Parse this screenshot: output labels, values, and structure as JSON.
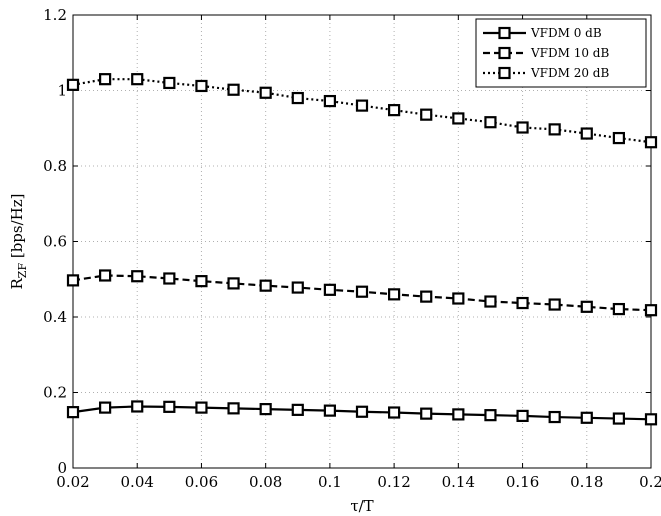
{
  "chart_data": {
    "type": "line",
    "xlabel": "τ/T",
    "ylabel_main": "R",
    "ylabel_sub": "ZF",
    "ylabel_rest": " [bps/Hz]",
    "xlim": [
      0.02,
      0.2
    ],
    "ylim": [
      0,
      1.2
    ],
    "xticks": [
      "0.02",
      "0.04",
      "0.06",
      "0.08",
      "0.1",
      "0.12",
      "0.14",
      "0.16",
      "0.18",
      "0.2"
    ],
    "yticks": [
      "0",
      "0.2",
      "0.4",
      "0.6",
      "0.8",
      "1",
      "1.2"
    ],
    "grid": true,
    "legend_position": "top-right",
    "x": [
      0.02,
      0.03,
      0.04,
      0.05,
      0.06,
      0.07,
      0.08,
      0.09,
      0.1,
      0.11,
      0.12,
      0.13,
      0.14,
      0.15,
      0.16,
      0.17,
      0.18,
      0.19,
      0.2
    ],
    "series": [
      {
        "name": "VFDM 0 dB",
        "line_style": "solid",
        "marker": "square",
        "values": [
          0.148,
          0.16,
          0.163,
          0.162,
          0.16,
          0.158,
          0.156,
          0.154,
          0.152,
          0.149,
          0.147,
          0.144,
          0.142,
          0.14,
          0.138,
          0.135,
          0.133,
          0.131,
          0.129
        ]
      },
      {
        "name": "VFDM 10 dB",
        "line_style": "dashed",
        "marker": "square",
        "values": [
          0.497,
          0.51,
          0.508,
          0.502,
          0.495,
          0.489,
          0.483,
          0.478,
          0.472,
          0.467,
          0.46,
          0.454,
          0.449,
          0.441,
          0.437,
          0.433,
          0.427,
          0.421,
          0.418
        ]
      },
      {
        "name": "VFDM 20 dB",
        "line_style": "dotted",
        "marker": "square",
        "values": [
          1.015,
          1.03,
          1.03,
          1.02,
          1.012,
          1.002,
          0.994,
          0.98,
          0.972,
          0.96,
          0.948,
          0.936,
          0.926,
          0.916,
          0.902,
          0.897,
          0.886,
          0.874,
          0.863
        ]
      }
    ]
  }
}
